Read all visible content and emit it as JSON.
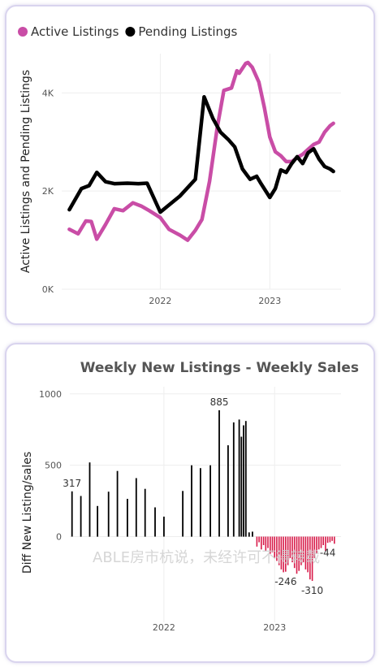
{
  "chart_data": [
    {
      "type": "line",
      "ylabel": "Active Listings and Pending Listings",
      "ylim": [
        0,
        4800
      ],
      "y_ticks": [
        {
          "value": 0,
          "label": "0K"
        },
        {
          "value": 2000,
          "label": "2K"
        },
        {
          "value": 4000,
          "label": "4K"
        }
      ],
      "x_ticks": [
        {
          "value": 2022.0,
          "label": "2022"
        },
        {
          "value": 2023.0,
          "label": "2023"
        }
      ],
      "xlim": [
        2021.1,
        2023.65
      ],
      "legend_position": "top-left",
      "series": [
        {
          "name": "Active Listings",
          "color": "#c94da6",
          "x": [
            2021.17,
            2021.25,
            2021.32,
            2021.37,
            2021.42,
            2021.5,
            2021.58,
            2021.66,
            2021.75,
            2021.83,
            2021.9,
            2022.0,
            2022.08,
            2022.18,
            2022.25,
            2022.32,
            2022.38,
            2022.45,
            2022.52,
            2022.58,
            2022.65,
            2022.7,
            2022.72,
            2022.78,
            2022.8,
            2022.84,
            2022.9,
            2022.95,
            2023.0,
            2023.05,
            2023.1,
            2023.15,
            2023.2,
            2023.25,
            2023.3,
            2023.35,
            2023.4,
            2023.45,
            2023.5,
            2023.55,
            2023.58
          ],
          "y": [
            1220,
            1130,
            1390,
            1380,
            1020,
            1320,
            1640,
            1600,
            1760,
            1690,
            1600,
            1460,
            1220,
            1100,
            1000,
            1200,
            1420,
            2200,
            3300,
            4050,
            4100,
            4450,
            4400,
            4600,
            4620,
            4520,
            4220,
            3700,
            3100,
            2800,
            2720,
            2600,
            2600,
            2680,
            2750,
            2850,
            2950,
            3000,
            3200,
            3330,
            3380
          ]
        },
        {
          "name": "Pending Listings",
          "color": "#000000",
          "x": [
            2021.17,
            2021.28,
            2021.35,
            2021.42,
            2021.5,
            2021.58,
            2021.7,
            2021.8,
            2021.88,
            2022.0,
            2022.18,
            2022.32,
            2022.4,
            2022.48,
            2022.55,
            2022.62,
            2022.68,
            2022.75,
            2022.82,
            2022.88,
            2022.92,
            2023.0,
            2023.05,
            2023.1,
            2023.15,
            2023.2,
            2023.25,
            2023.3,
            2023.35,
            2023.4,
            2023.45,
            2023.5,
            2023.55,
            2023.58
          ],
          "y": [
            1620,
            2050,
            2110,
            2380,
            2190,
            2150,
            2160,
            2150,
            2160,
            1570,
            1900,
            2240,
            3920,
            3480,
            3200,
            3050,
            2900,
            2450,
            2240,
            2300,
            2150,
            1870,
            2050,
            2430,
            2380,
            2560,
            2700,
            2560,
            2780,
            2860,
            2650,
            2500,
            2450,
            2400
          ]
        }
      ]
    },
    {
      "type": "bar",
      "title": "Weekly New Listings - Weekly Sales",
      "ylabel": "Diff New Listing/sales",
      "ylim": [
        -600,
        1050
      ],
      "y_ticks": [
        {
          "value": 0,
          "label": "0"
        },
        {
          "value": 500,
          "label": "500"
        },
        {
          "value": 1000,
          "label": "1000"
        }
      ],
      "x_ticks": [
        {
          "value": 2022.0,
          "label": "2022"
        },
        {
          "value": 2023.0,
          "label": "2023"
        }
      ],
      "xlim": [
        2021.15,
        2023.6
      ],
      "positive_color": "#000000",
      "negative_color": "#d81b4a",
      "x": [
        2021.17,
        2021.25,
        2021.33,
        2021.4,
        2021.5,
        2021.58,
        2021.67,
        2021.75,
        2021.83,
        2021.92,
        2022.0,
        2022.17,
        2022.25,
        2022.33,
        2022.42,
        2022.5,
        2022.58,
        2022.63,
        2022.68,
        2022.7,
        2022.72,
        2022.74,
        2022.77,
        2022.8,
        2022.84,
        2022.86,
        2022.88,
        2022.9,
        2022.92,
        2022.94,
        2022.96,
        2022.98,
        2023.0,
        2023.02,
        2023.04,
        2023.06,
        2023.08,
        2023.1,
        2023.12,
        2023.14,
        2023.16,
        2023.18,
        2023.2,
        2023.22,
        2023.24,
        2023.26,
        2023.28,
        2023.3,
        2023.32,
        2023.34,
        2023.36,
        2023.38,
        2023.4,
        2023.42,
        2023.44,
        2023.46,
        2023.48,
        2023.5,
        2023.52,
        2023.54
      ],
      "values": [
        317,
        285,
        520,
        215,
        315,
        460,
        265,
        410,
        335,
        205,
        140,
        320,
        500,
        480,
        500,
        885,
        640,
        800,
        820,
        700,
        780,
        810,
        30,
        35,
        -70,
        -40,
        -90,
        -60,
        -100,
        -80,
        -120,
        -110,
        -150,
        -170,
        -200,
        -230,
        -250,
        -246,
        -200,
        -150,
        -180,
        -220,
        -260,
        -240,
        -200,
        -180,
        -230,
        -250,
        -300,
        -310,
        -150,
        -120,
        -90,
        -80,
        -60,
        -100,
        -44,
        -40,
        -30,
        -50
      ],
      "data_labels": [
        {
          "x": 2021.17,
          "value": 317,
          "label": "317",
          "position": "above"
        },
        {
          "x": 2022.5,
          "value": 885,
          "label": "885",
          "position": "above"
        },
        {
          "x": 2023.1,
          "value": -246,
          "label": "-246",
          "position": "below"
        },
        {
          "x": 2023.34,
          "value": -310,
          "label": "-310",
          "position": "below"
        },
        {
          "x": 2023.48,
          "value": -44,
          "label": "-44",
          "position": "below"
        }
      ],
      "watermark": "ABLE房市杭说，未经许可不得转载"
    }
  ]
}
